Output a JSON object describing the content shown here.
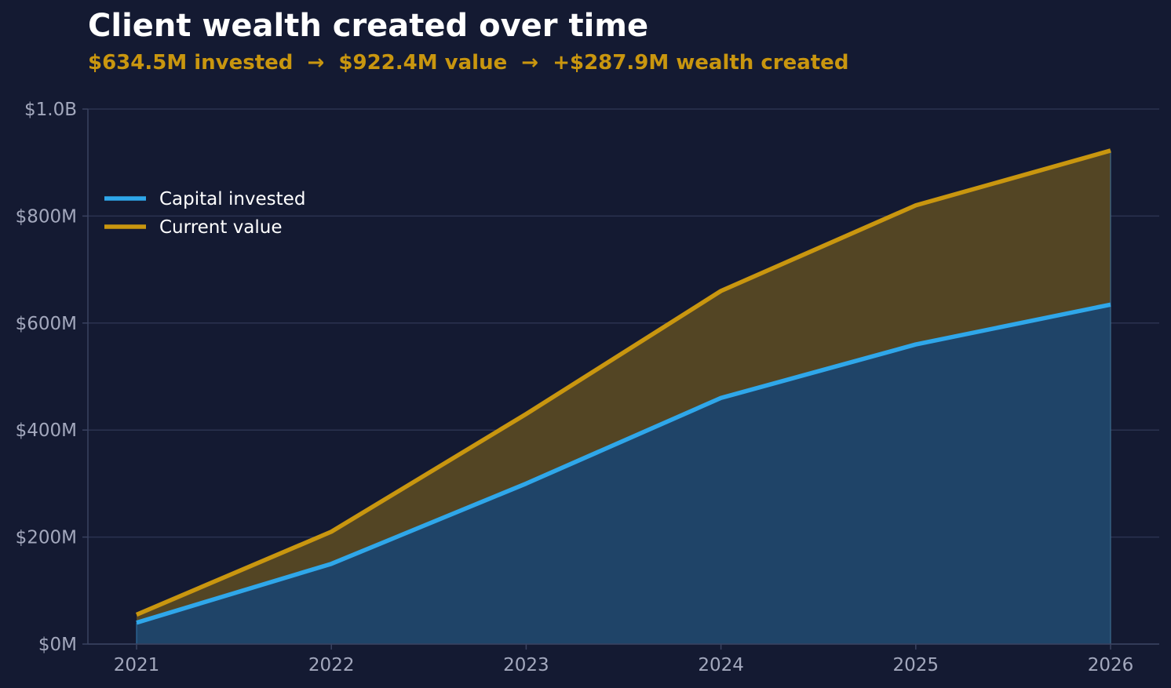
{
  "chart_data": {
    "type": "area",
    "title": "Client wealth created over time",
    "subtitle": "$634.5M invested  →  $922.4M value  →  +$287.9M wealth created",
    "xlabel": "",
    "ylabel": "",
    "x": [
      "2021",
      "2022",
      "2023",
      "2024",
      "2025",
      "2026"
    ],
    "series": [
      {
        "name": "Capital invested",
        "color": "#2fa7ea",
        "fill": "#1f4468",
        "values": [
          40,
          150,
          300,
          460,
          560,
          634.5
        ]
      },
      {
        "name": "Current value",
        "color": "#c9960f",
        "fill": "#534524",
        "values": [
          55,
          210,
          430,
          660,
          820,
          922.4
        ]
      }
    ],
    "ylim": [
      0,
      1000
    ],
    "y_ticks": [
      {
        "value": 0,
        "label": "$0M"
      },
      {
        "value": 200,
        "label": "$200M"
      },
      {
        "value": 400,
        "label": "$400M"
      },
      {
        "value": 600,
        "label": "$600M"
      },
      {
        "value": 800,
        "label": "$800M"
      },
      {
        "value": 1000,
        "label": "$1.0B"
      }
    ],
    "grid": true,
    "legend_position": "upper-left",
    "colors": {
      "background": "#141a32",
      "grid": "#2b3350",
      "axis": "#3a4260",
      "tick_text": "#a3a8bd",
      "title": "#ffffff",
      "subtitle": "#c9960f"
    }
  }
}
